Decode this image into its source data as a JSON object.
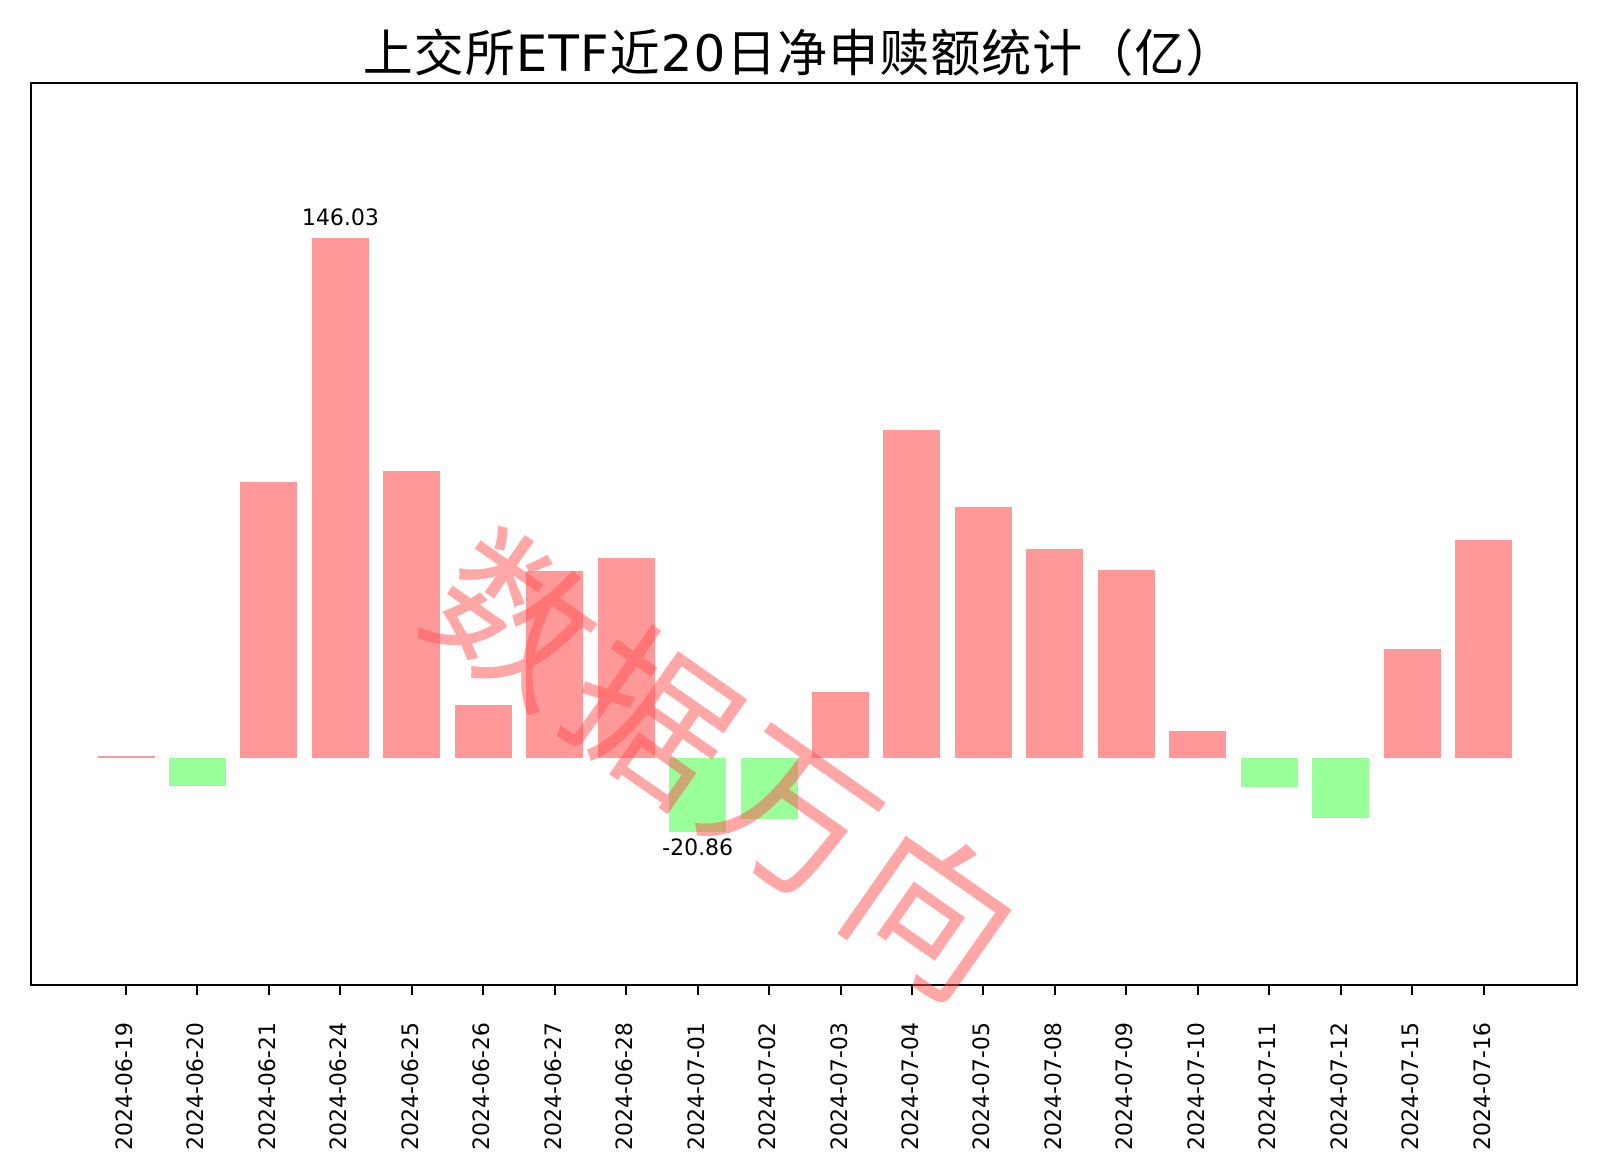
{
  "title": "上交所ETF近20日净申赎额统计（亿）",
  "watermark": "数据万向",
  "colors": {
    "positive": "#ff9999",
    "negative": "#99ff99"
  },
  "annotations": {
    "max_label": "146.03",
    "min_label": "-20.86"
  },
  "chart_data": {
    "type": "bar",
    "title": "上交所ETF近20日净申赎额统计（亿）",
    "xlabel": "",
    "ylabel": "",
    "categories": [
      "2024-06-19",
      "2024-06-20",
      "2024-06-21",
      "2024-06-24",
      "2024-06-25",
      "2024-06-26",
      "2024-06-27",
      "2024-06-28",
      "2024-07-01",
      "2024-07-02",
      "2024-07-03",
      "2024-07-04",
      "2024-07-05",
      "2024-07-08",
      "2024-07-09",
      "2024-07-10",
      "2024-07-11",
      "2024-07-12",
      "2024-07-15",
      "2024-07-16"
    ],
    "values": [
      0.6,
      -7.9,
      77.5,
      146.03,
      80.6,
      14.9,
      52.5,
      56.2,
      -20.86,
      -17.2,
      18.5,
      92.1,
      70.5,
      58.7,
      52.8,
      7.6,
      -8.1,
      -16.9,
      30.6,
      61.2
    ],
    "annotations": [
      {
        "category": "2024-06-24",
        "text": "146.03"
      },
      {
        "category": "2024-07-01",
        "text": "-20.86"
      }
    ],
    "ylim": [
      -64,
      211
    ],
    "grid": false,
    "legend": null,
    "y_axis_visible": false
  }
}
